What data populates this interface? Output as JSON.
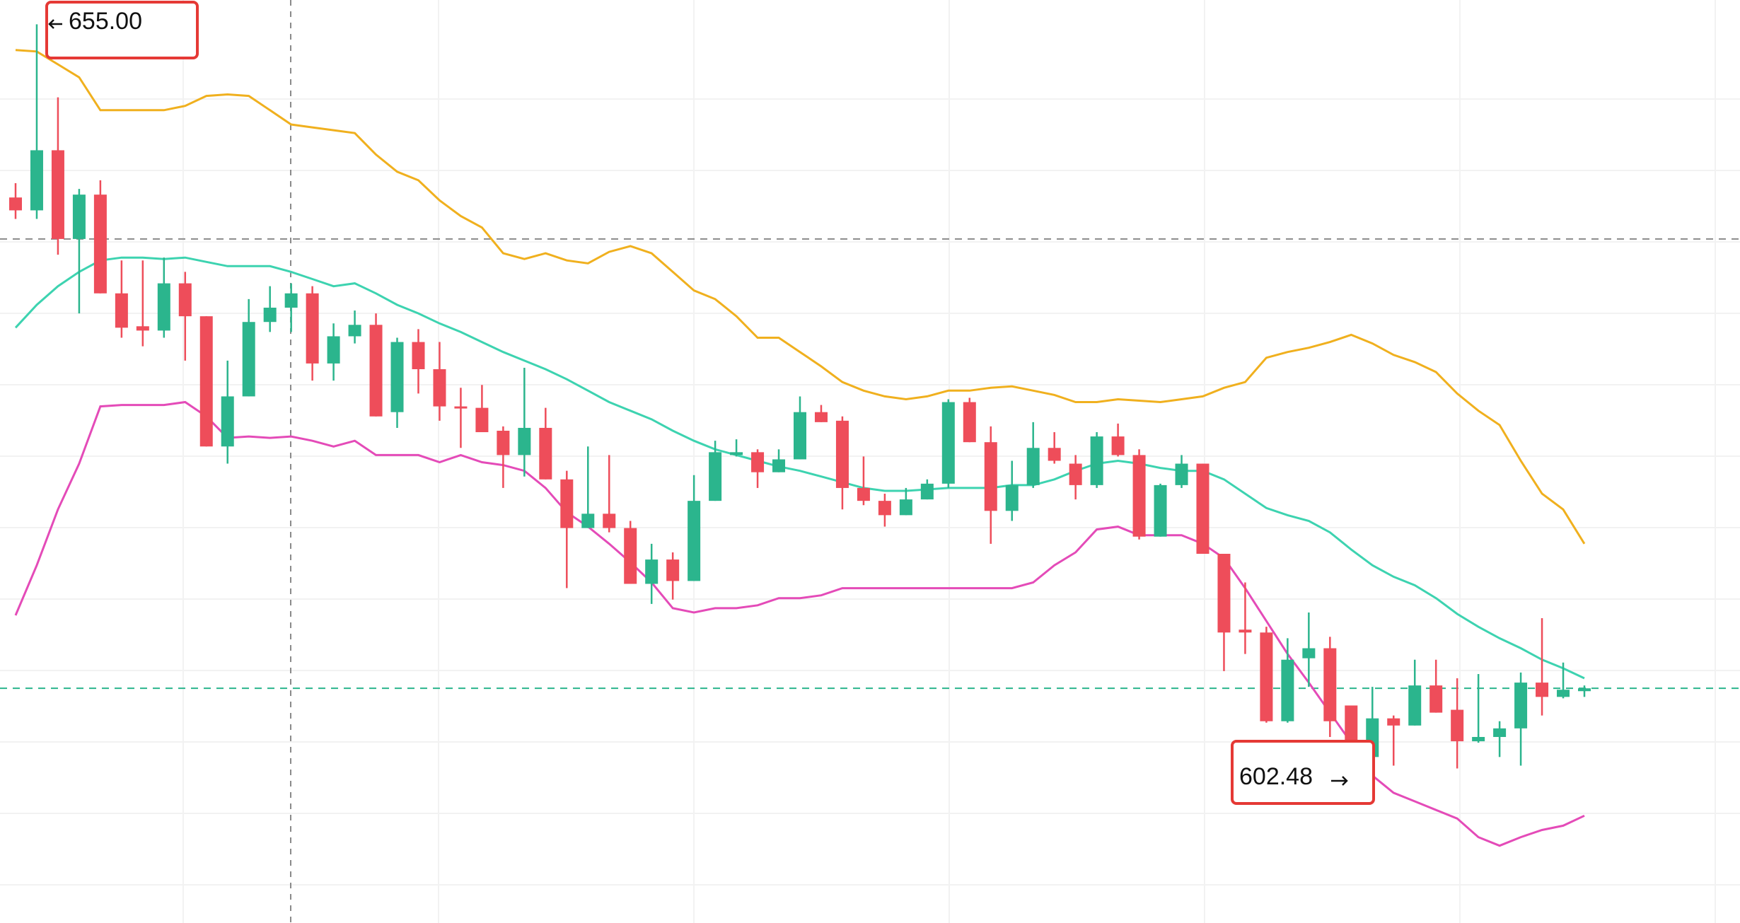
{
  "chart_data": {
    "type": "candlestick",
    "open": [
      642.9,
      642.0,
      646.2,
      640.0,
      643.1,
      636.2,
      633.9,
      633.6,
      636.9,
      634.6,
      625.5,
      629.0,
      634.2,
      635.2,
      636.2,
      631.3,
      633.2,
      634.0,
      627.9,
      632.8,
      630.9,
      628.3,
      628.2,
      626.6,
      624.9,
      626.8,
      623.2,
      619.8,
      620.8,
      619.8,
      615.9,
      617.6,
      616.1,
      621.7,
      624.9,
      625.1,
      623.7,
      624.6,
      627.9,
      627.3,
      622.6,
      621.7,
      620.7,
      621.8,
      622.9,
      628.6,
      625.8,
      621.0,
      622.8,
      625.4,
      624.3,
      622.8,
      626.2,
      624.9,
      619.2,
      622.8,
      624.3,
      618.0,
      612.7,
      612.5,
      606.3,
      610.7,
      611.4,
      607.4,
      603.8,
      606.5,
      606.0,
      608.8,
      607.1,
      604.9,
      605.2,
      605.8,
      609.0,
      608.0,
      608.4
    ],
    "high": [
      643.9,
      655.0,
      649.9,
      643.5,
      644.1,
      638.5,
      638.5,
      638.7,
      637.7,
      634.6,
      631.5,
      635.8,
      636.7,
      636.9,
      636.7,
      634.1,
      635.0,
      634.8,
      633.1,
      633.7,
      632.8,
      629.6,
      629.8,
      626.9,
      631.0,
      628.2,
      623.8,
      625.5,
      624.9,
      620.3,
      618.7,
      618.1,
      623.5,
      625.9,
      626.0,
      625.3,
      625.3,
      629.0,
      628.4,
      627.6,
      624.8,
      622.2,
      622.6,
      623.2,
      628.8,
      628.9,
      626.9,
      624.5,
      627.2,
      626.5,
      624.9,
      626.5,
      627.1,
      625.3,
      622.9,
      624.9,
      624.3,
      618.0,
      616.0,
      612.9,
      612.1,
      613.9,
      612.2,
      607.4,
      608.7,
      606.7,
      610.6,
      610.6,
      609.3,
      609.6,
      606.3,
      609.7,
      613.5,
      610.4,
      608.8
    ],
    "low": [
      641.4,
      641.4,
      638.9,
      634.8,
      636.2,
      633.1,
      632.5,
      633.1,
      631.5,
      625.5,
      624.3,
      629.0,
      633.5,
      633.5,
      630.1,
      630.1,
      632.7,
      627.6,
      626.8,
      629.2,
      627.3,
      625.4,
      626.5,
      622.6,
      623.4,
      623.2,
      615.6,
      619.8,
      619.5,
      615.9,
      614.5,
      614.8,
      616.1,
      621.7,
      624.8,
      622.6,
      623.7,
      624.6,
      627.2,
      621.1,
      621.4,
      619.9,
      620.7,
      621.8,
      622.6,
      625.8,
      618.7,
      620.3,
      622.6,
      624.3,
      621.8,
      622.6,
      624.8,
      619.0,
      619.2,
      622.6,
      618.0,
      609.8,
      611.0,
      606.2,
      606.2,
      608.7,
      605.2,
      602.48,
      603.8,
      603.2,
      606.0,
      606.9,
      603.0,
      604.8,
      603.8,
      603.2,
      606.7,
      607.9,
      608.0
    ],
    "close": [
      642.0,
      646.2,
      640.0,
      643.1,
      636.2,
      633.8,
      633.6,
      636.9,
      634.6,
      625.5,
      629.0,
      634.2,
      635.2,
      636.2,
      631.3,
      633.2,
      634.0,
      627.6,
      632.8,
      630.9,
      628.3,
      628.2,
      626.5,
      624.9,
      626.8,
      623.2,
      619.8,
      620.8,
      619.8,
      615.9,
      617.6,
      616.1,
      621.7,
      625.1,
      625.1,
      623.7,
      624.6,
      627.9,
      627.2,
      622.6,
      621.7,
      620.7,
      621.8,
      622.9,
      628.6,
      625.8,
      621.0,
      622.8,
      625.4,
      624.5,
      622.8,
      626.2,
      624.9,
      619.2,
      622.8,
      624.3,
      618.0,
      612.5,
      612.5,
      606.3,
      610.6,
      611.4,
      606.3,
      603.8,
      606.5,
      606.0,
      608.8,
      606.9,
      604.9,
      605.2,
      605.8,
      609.0,
      608.0,
      608.5,
      608.6
    ],
    "up_color": "#2bb58d",
    "down_color": "#ee4d5a",
    "upper_band": {
      "color": "#f0b01e",
      "values": [
        653.2,
        653.1,
        652.2,
        651.3,
        649.0,
        649.0,
        649.0,
        649.0,
        649.3,
        650.0,
        650.1,
        650.0,
        649.0,
        648.0,
        647.8,
        647.6,
        647.4,
        645.9,
        644.7,
        644.1,
        642.7,
        641.6,
        640.8,
        639.0,
        638.6,
        639.0,
        638.5,
        638.3,
        639.1,
        639.5,
        639.0,
        637.7,
        636.4,
        635.8,
        634.6,
        633.1,
        633.1,
        632.1,
        631.1,
        630.0,
        629.4,
        629.0,
        628.8,
        629.0,
        629.4,
        629.4,
        629.6,
        629.7,
        629.4,
        629.1,
        628.6,
        628.6,
        628.8,
        628.7,
        628.6,
        628.8,
        629.0,
        629.6,
        630.0,
        631.7,
        632.1,
        632.4,
        632.8,
        633.3,
        632.7,
        631.9,
        631.4,
        630.7,
        629.2,
        628.0,
        627.0,
        624.5,
        622.2,
        621.1,
        618.7
      ]
    },
    "middle_band": {
      "color": "#3dd3b0",
      "values": [
        633.8,
        635.4,
        636.7,
        637.7,
        638.5,
        638.7,
        638.7,
        638.6,
        638.7,
        638.4,
        638.1,
        638.1,
        638.1,
        637.7,
        637.2,
        636.7,
        636.9,
        636.2,
        635.4,
        634.8,
        634.1,
        633.5,
        632.8,
        632.1,
        631.5,
        630.9,
        630.2,
        629.4,
        628.6,
        628.0,
        627.4,
        626.6,
        625.9,
        625.3,
        624.9,
        624.5,
        624.1,
        623.8,
        623.4,
        623.0,
        622.6,
        622.4,
        622.4,
        622.5,
        622.6,
        622.6,
        622.6,
        622.8,
        622.8,
        623.2,
        623.8,
        624.3,
        624.5,
        624.3,
        624.0,
        623.8,
        623.8,
        623.2,
        622.2,
        621.2,
        620.7,
        620.3,
        619.5,
        618.3,
        617.2,
        616.4,
        615.8,
        614.9,
        613.8,
        612.9,
        612.1,
        611.4,
        610.6,
        610.0,
        609.3
      ]
    },
    "lower_band": {
      "color": "#e44bb8",
      "values": [
        613.7,
        617.2,
        621.1,
        624.3,
        628.3,
        628.4,
        628.4,
        628.4,
        628.6,
        627.6,
        626.1,
        626.2,
        626.1,
        626.2,
        625.9,
        625.5,
        625.9,
        624.9,
        624.9,
        624.9,
        624.4,
        624.9,
        624.4,
        624.2,
        623.8,
        622.6,
        620.9,
        619.9,
        618.7,
        617.4,
        616.0,
        614.2,
        613.9,
        614.2,
        614.2,
        614.4,
        614.9,
        614.9,
        615.1,
        615.6,
        615.6,
        615.6,
        615.6,
        615.6,
        615.6,
        615.6,
        615.6,
        615.6,
        616.0,
        617.2,
        618.1,
        619.7,
        619.9,
        619.3,
        619.3,
        619.3,
        618.7,
        617.7,
        615.6,
        613.3,
        611.0,
        609.0,
        606.9,
        604.8,
        602.5,
        601.3,
        600.7,
        600.1,
        599.5,
        598.2,
        597.6,
        598.2,
        598.7,
        599.0,
        599.7
      ]
    },
    "reference_lines": [
      {
        "value": 640.0,
        "color": "#8a8a8a"
      },
      {
        "value": 608.6,
        "color": "#2bb58d"
      }
    ],
    "high_label": "655.00",
    "low_label": "602.48",
    "ylim": [
      592.2,
      656.7
    ]
  }
}
